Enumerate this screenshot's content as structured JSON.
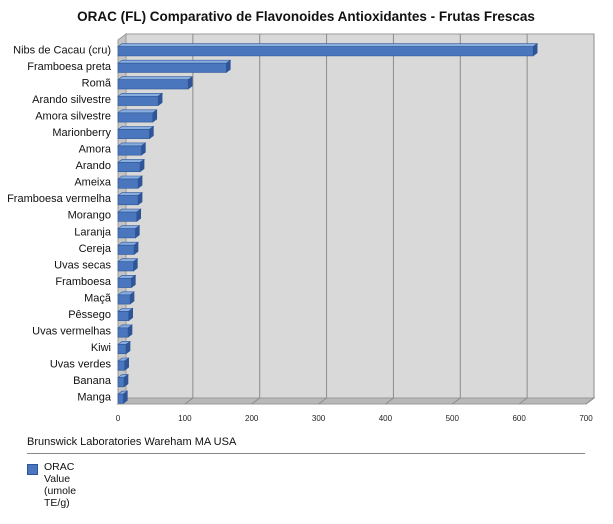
{
  "chart_data": {
    "type": "bar",
    "orientation": "horizontal",
    "title": "ORAC (FL) Comparativo de Flavonoides Antioxidantes - Frutas Frescas",
    "categories": [
      "Nibs de Cacau (cru)",
      "Framboesa preta",
      "Romã",
      "Arando silvestre",
      "Amora silvestre",
      "Marionberry",
      "Amora",
      "Arando",
      "Ameixa",
      "Framboesa vermelha",
      "Morango",
      "Laranja",
      "Cereja",
      "Uvas secas",
      "Framboesa",
      "Maçã",
      "Pêssego",
      "Uvas vermelhas",
      "Kiwi",
      "Uvas verdes",
      "Banana",
      "Manga"
    ],
    "series": [
      {
        "name": "ORAC Value (umole TE/g)",
        "values": [
          621,
          162,
          105,
          60,
          52,
          47,
          35,
          33,
          30,
          30,
          28,
          26,
          24,
          23,
          20,
          18,
          16,
          15,
          12,
          10,
          9,
          8
        ]
      }
    ],
    "xlim": [
      0,
      700
    ],
    "xticks": [
      "0",
      "100",
      "200",
      "300",
      "400",
      "500",
      "600",
      "700"
    ],
    "grid": true,
    "legend": "bottom-left",
    "bar_color": "#4a76bd"
  },
  "source": "Brunswick Laboratories Wareham MA USA",
  "legend_label": "ORAC Value (umole TE/g)"
}
